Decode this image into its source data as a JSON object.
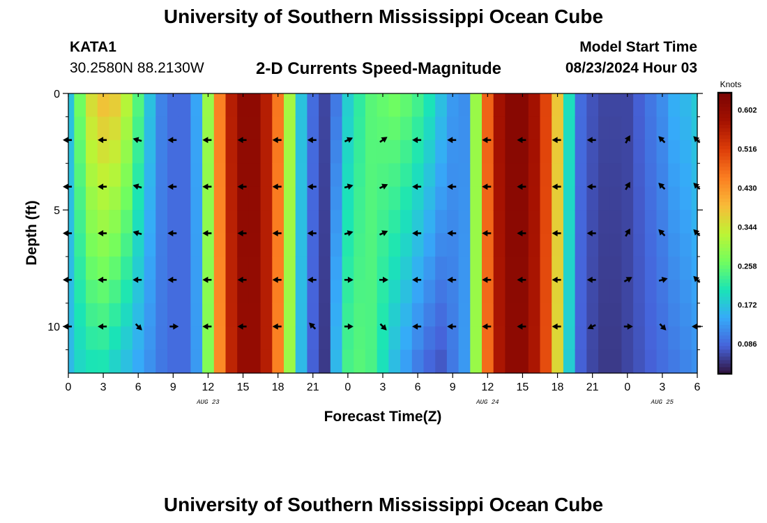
{
  "header": {
    "title": "University of Southern Mississippi Ocean Cube",
    "station": "KATA1",
    "coords": "30.2580N  88.2130W",
    "subtitle": "2-D Currents Speed-Magnitude",
    "model_start_label": "Model Start Time",
    "model_start_value": "08/23/2024 Hour 03"
  },
  "footer": {
    "title": "University of Southern Mississippi Ocean Cube"
  },
  "chart_data": {
    "type": "heatmap",
    "title": "2-D Currents Speed-Magnitude",
    "xlabel": "Forecast Time(Z)",
    "ylabel": "Depth (ft)",
    "xlim": [
      0,
      54
    ],
    "ylim": [
      12,
      0
    ],
    "x_ticks": [
      0,
      3,
      6,
      9,
      12,
      15,
      18,
      21,
      24,
      27,
      30,
      33,
      36,
      39,
      42,
      45,
      48,
      51,
      54
    ],
    "x_tick_labels": [
      "0",
      "3",
      "6",
      "9",
      "12",
      "15",
      "18",
      "21",
      "0",
      "3",
      "6",
      "9",
      "12",
      "15",
      "18",
      "21",
      "0",
      "3",
      "6"
    ],
    "y_ticks": [
      0,
      5,
      10
    ],
    "y_tick_labels": [
      "0",
      "5",
      "10"
    ],
    "date_labels": [
      {
        "text": "AUG 23",
        "x": 12
      },
      {
        "text": "AUG 24",
        "x": 36
      },
      {
        "text": "AUG 25",
        "x": 51
      }
    ],
    "colorbar": {
      "label": "Knots",
      "min": 0.02,
      "max": 0.64,
      "ticks": [
        0.086,
        0.172,
        0.258,
        0.344,
        0.43,
        0.516,
        0.602
      ],
      "tick_labels": [
        "0.086",
        "0.172",
        "0.258",
        "0.344",
        "0.430",
        "0.516",
        "0.602"
      ]
    },
    "speed_profile": {
      "hours": [
        0,
        1,
        2,
        3,
        4,
        5,
        6,
        7,
        8,
        9,
        10,
        11,
        12,
        13,
        14,
        15,
        16,
        17,
        18,
        19,
        20,
        21,
        22,
        23,
        24,
        25,
        26,
        27,
        28,
        29,
        30,
        31,
        32,
        33,
        34,
        35,
        36,
        37,
        38,
        39,
        40,
        41,
        42,
        43,
        44,
        45,
        46,
        47,
        48,
        49,
        50,
        51,
        52,
        53,
        54
      ],
      "surface_knots": [
        0.17,
        0.27,
        0.36,
        0.39,
        0.38,
        0.33,
        0.25,
        0.17,
        0.11,
        0.09,
        0.09,
        0.14,
        0.3,
        0.45,
        0.56,
        0.61,
        0.61,
        0.56,
        0.46,
        0.31,
        0.17,
        0.09,
        0.06,
        0.1,
        0.18,
        0.22,
        0.25,
        0.26,
        0.27,
        0.26,
        0.24,
        0.21,
        0.17,
        0.13,
        0.12,
        0.3,
        0.48,
        0.58,
        0.62,
        0.62,
        0.58,
        0.51,
        0.38,
        0.2,
        0.09,
        0.07,
        0.06,
        0.06,
        0.06,
        0.08,
        0.1,
        0.12,
        0.15,
        0.16,
        0.18
      ],
      "bottom_knots": [
        0.16,
        0.19,
        0.2,
        0.2,
        0.18,
        0.16,
        0.14,
        0.12,
        0.1,
        0.09,
        0.09,
        0.13,
        0.28,
        0.44,
        0.55,
        0.6,
        0.6,
        0.56,
        0.45,
        0.3,
        0.16,
        0.08,
        0.05,
        0.16,
        0.24,
        0.25,
        0.24,
        0.2,
        0.16,
        0.13,
        0.1,
        0.08,
        0.07,
        0.1,
        0.13,
        0.3,
        0.47,
        0.57,
        0.61,
        0.61,
        0.57,
        0.5,
        0.36,
        0.18,
        0.08,
        0.06,
        0.05,
        0.05,
        0.06,
        0.07,
        0.08,
        0.09,
        0.1,
        0.11,
        0.12
      ]
    },
    "vectors": {
      "hours": [
        0,
        3,
        6,
        9,
        12,
        15,
        18,
        21,
        24,
        27,
        30,
        33,
        36,
        39,
        42,
        45,
        48,
        51,
        54
      ],
      "depths_ft": [
        2,
        4,
        6,
        8,
        10
      ],
      "direction_deg": [
        [
          180,
          180,
          165,
          180,
          180,
          180,
          180,
          180,
          25,
          35,
          180,
          180,
          180,
          180,
          180,
          180,
          60,
          135,
          135
        ],
        [
          180,
          180,
          165,
          180,
          180,
          180,
          180,
          180,
          15,
          25,
          180,
          180,
          180,
          180,
          180,
          180,
          60,
          135,
          135
        ],
        [
          180,
          180,
          165,
          180,
          180,
          180,
          180,
          180,
          15,
          25,
          180,
          180,
          180,
          180,
          180,
          180,
          60,
          135,
          135
        ],
        [
          180,
          180,
          180,
          180,
          180,
          180,
          180,
          180,
          0,
          0,
          180,
          180,
          180,
          180,
          180,
          180,
          30,
          15,
          135
        ],
        [
          180,
          180,
          315,
          0,
          180,
          180,
          180,
          135,
          0,
          315,
          180,
          180,
          180,
          180,
          180,
          205,
          0,
          315,
          180
        ]
      ]
    }
  }
}
